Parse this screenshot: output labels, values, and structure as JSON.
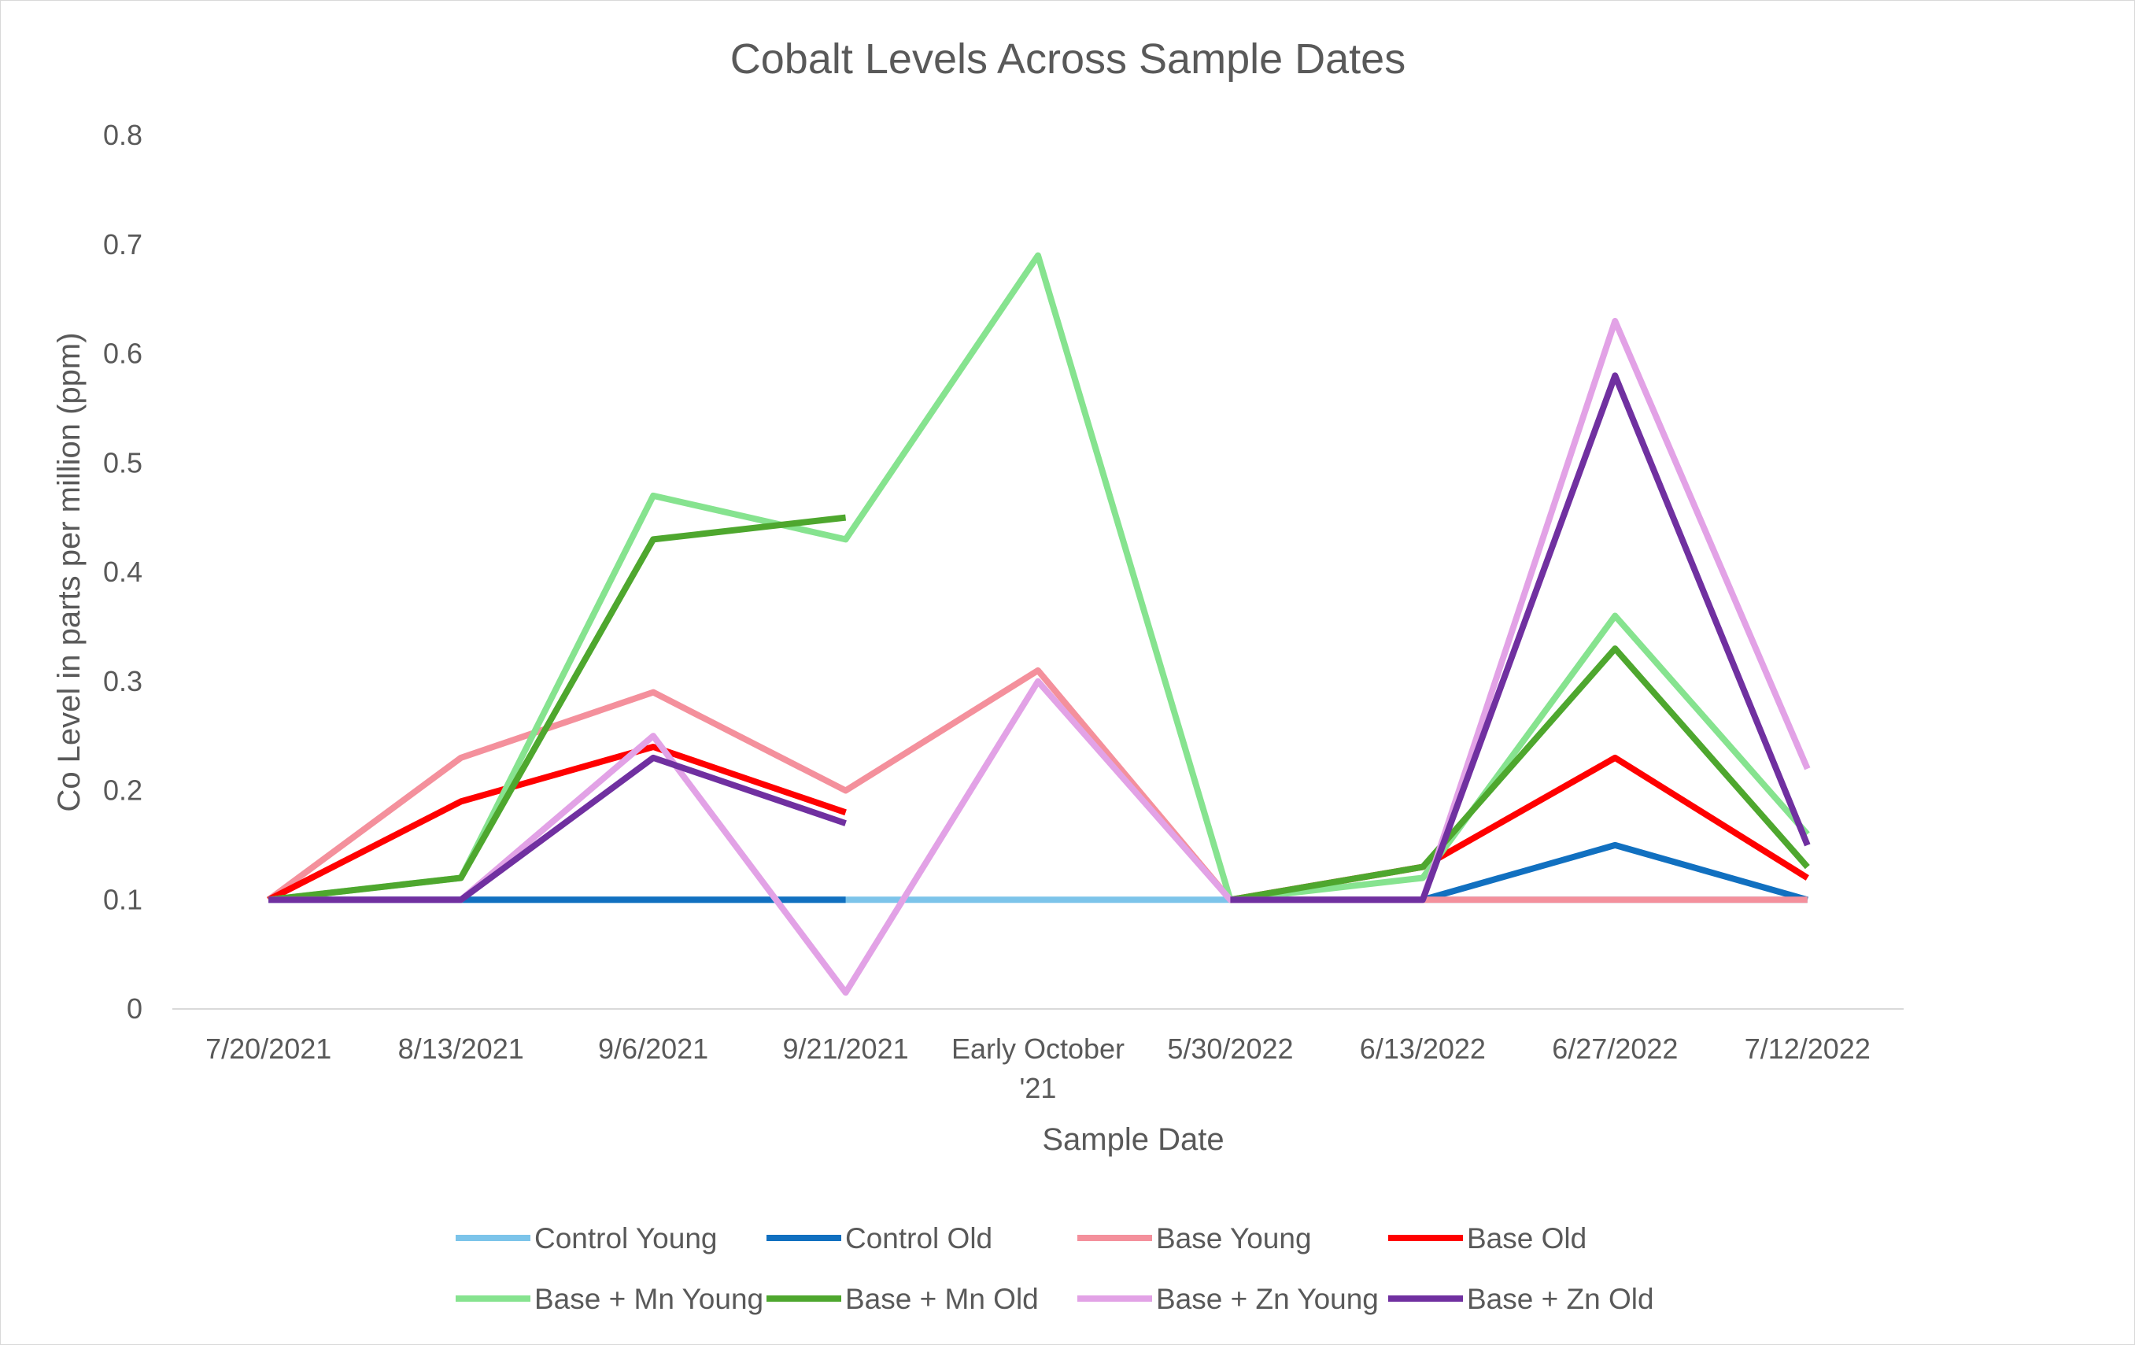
{
  "chart_data": {
    "type": "line",
    "title": "Cobalt Levels Across Sample Dates",
    "xlabel": "Sample Date",
    "ylabel": "Co Level in parts per million (ppm)",
    "ylim": [
      0,
      0.8
    ],
    "yticks": [
      "0",
      "0.1",
      "0.2",
      "0.3",
      "0.4",
      "0.5",
      "0.6",
      "0.7",
      "0.8"
    ],
    "grid": false,
    "legend_position": "bottom",
    "categories": [
      [
        "7/20/2021"
      ],
      [
        "8/13/2021"
      ],
      [
        "9/6/2021"
      ],
      [
        "9/21/2021"
      ],
      [
        "Early October",
        "'21"
      ],
      [
        "5/30/2022"
      ],
      [
        "6/13/2022"
      ],
      [
        "6/27/2022"
      ],
      [
        "7/12/2022"
      ]
    ],
    "series": [
      {
        "name": "Control Young",
        "color": "#7cc4ea",
        "values": [
          0.1,
          0.1,
          0.1,
          0.1,
          0.1,
          0.1,
          0.1,
          0.1,
          0.1
        ]
      },
      {
        "name": "Control Old",
        "color": "#1170c0",
        "values": [
          0.1,
          0.1,
          0.1,
          0.1,
          null,
          0.1,
          0.1,
          0.15,
          0.1
        ]
      },
      {
        "name": "Base Young",
        "color": "#f4909c",
        "values": [
          0.1,
          0.23,
          0.29,
          0.2,
          0.31,
          0.1,
          0.1,
          0.1,
          0.1
        ]
      },
      {
        "name": "Base Old",
        "color": "#ff0000",
        "values": [
          0.1,
          0.19,
          0.24,
          0.18,
          null,
          0.1,
          0.13,
          0.23,
          0.12
        ]
      },
      {
        "name": "Base + Mn Young",
        "color": "#86e38f",
        "values": [
          0.1,
          0.12,
          0.47,
          0.43,
          0.69,
          0.1,
          0.12,
          0.36,
          0.16
        ]
      },
      {
        "name": "Base + Mn Old",
        "color": "#4ea72e",
        "values": [
          0.1,
          0.12,
          0.43,
          0.45,
          null,
          0.1,
          0.13,
          0.33,
          0.13
        ]
      },
      {
        "name": "Base + Zn Young",
        "color": "#e2a2e6",
        "values": [
          0.1,
          0.1,
          0.25,
          0.015,
          0.3,
          0.1,
          0.1,
          0.63,
          0.22
        ]
      },
      {
        "name": "Base + Zn Old",
        "color": "#7030a0",
        "values": [
          0.1,
          0.1,
          0.23,
          0.17,
          null,
          0.1,
          0.1,
          0.58,
          0.15
        ]
      }
    ]
  }
}
